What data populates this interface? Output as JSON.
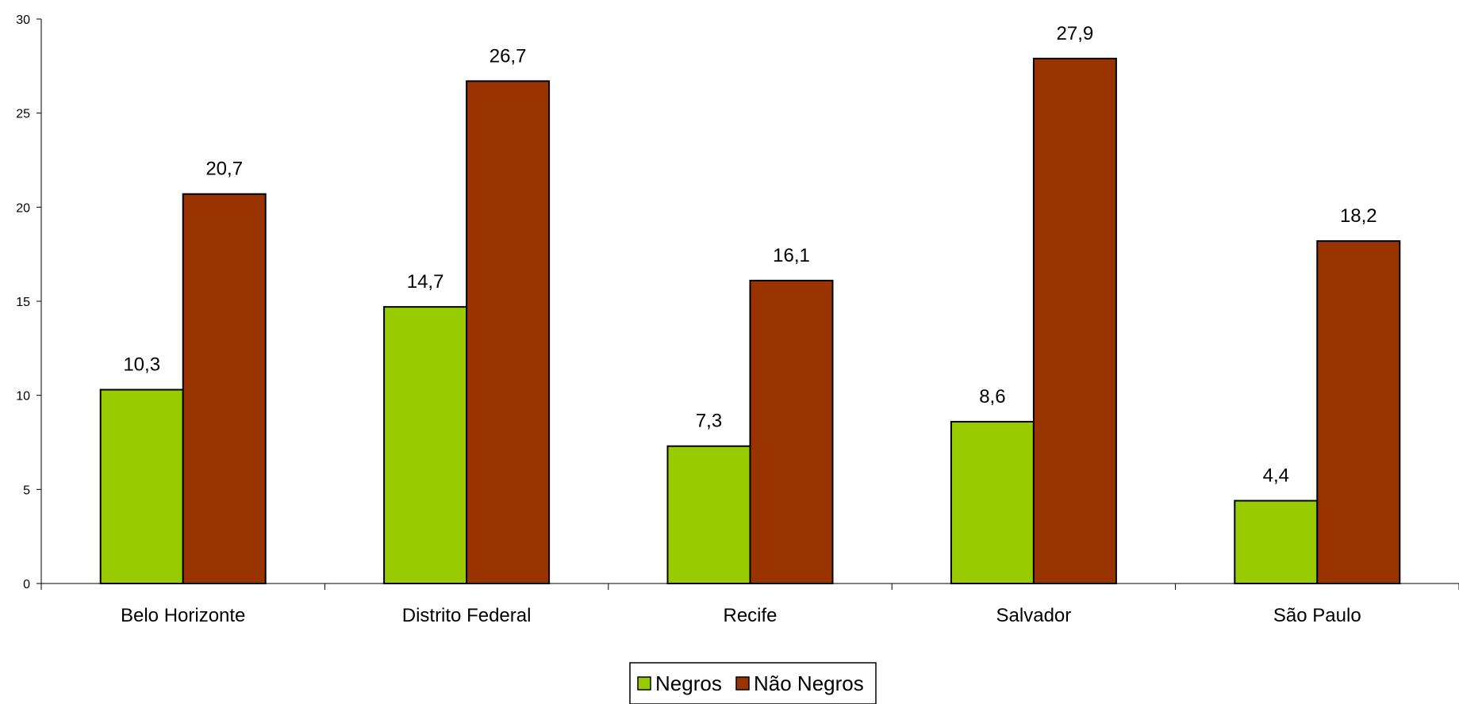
{
  "chart_data": {
    "type": "bar",
    "categories": [
      "Belo Horizonte",
      "Distrito Federal",
      "Recife",
      "Salvador",
      "São Paulo"
    ],
    "series": [
      {
        "name": "Negros",
        "color": "#99cc00",
        "values": [
          10.3,
          14.7,
          7.3,
          8.6,
          4.4
        ],
        "labels": [
          "10,3",
          "14,7",
          "7,3",
          "8,6",
          "4,4"
        ]
      },
      {
        "name": "Não Negros",
        "color": "#993300",
        "values": [
          20.7,
          26.7,
          16.1,
          27.9,
          18.2
        ],
        "labels": [
          "20,7",
          "26,7",
          "16,1",
          "27,9",
          "18,2"
        ]
      }
    ],
    "ylim": [
      0,
      30
    ],
    "yticks": [
      0,
      5,
      10,
      15,
      20,
      25,
      30
    ],
    "grid": false,
    "legend_position": "bottom-center"
  }
}
